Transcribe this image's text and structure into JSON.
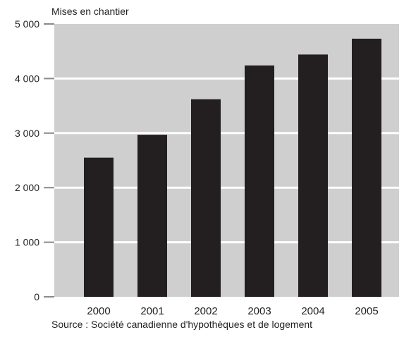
{
  "chart_data": {
    "type": "bar",
    "ylabel": "Mises en chantier",
    "xlabel": "",
    "categories": [
      "2000",
      "2001",
      "2002",
      "2003",
      "2004",
      "2005"
    ],
    "values": [
      2550,
      2970,
      3620,
      4240,
      4440,
      4730
    ],
    "ylim": [
      0,
      5000
    ],
    "yticks": [
      0,
      1000,
      2000,
      3000,
      4000,
      5000
    ],
    "ytick_labels": [
      "0",
      "1 000",
      "2 000",
      "3 000",
      "4 000",
      "5 000"
    ],
    "grid": true,
    "colors": {
      "bar": "#231f20",
      "plot_background": "#cfcfcf",
      "gridline": "#ffffff"
    }
  },
  "source": "Source : Société canadienne d'hypothèques et de logement"
}
